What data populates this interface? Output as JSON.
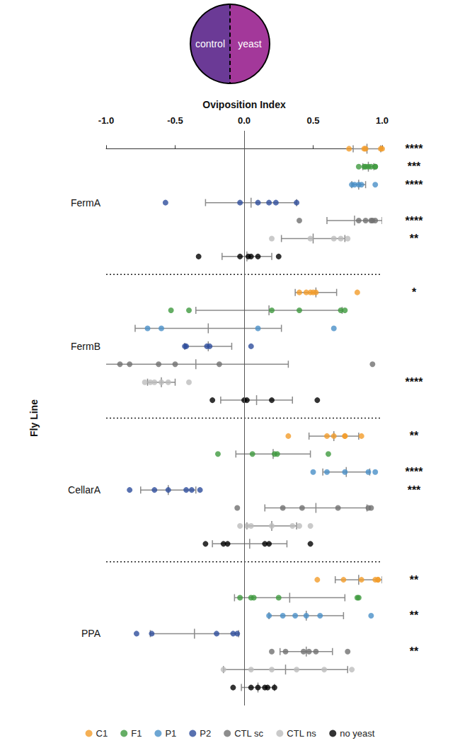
{
  "chart_data": {
    "type": "scatter",
    "x_label": "Oviposition Index",
    "y_label": "Fly Line",
    "annotations": [
      "control",
      "yeast"
    ],
    "xlim": [
      -1,
      1
    ],
    "xticks": [
      {
        "value": -1,
        "label": "-1.0"
      },
      {
        "value": -0.5,
        "label": "-0.5"
      },
      {
        "value": 0,
        "label": "0.0"
      },
      {
        "value": 0.5,
        "label": "0.5"
      },
      {
        "value": 1,
        "label": "1.0"
      }
    ],
    "categories": [
      "FermA",
      "FermB",
      "CellarA",
      "PPA"
    ],
    "series": [
      {
        "name": "C1",
        "color": "#f39c2b",
        "values": [
          [
            0.76,
            0.87,
            0.88,
            0.99,
            1.0
          ],
          [
            0.4,
            0.45,
            0.48,
            0.5,
            0.52,
            0.82
          ],
          [
            0.32,
            0.6,
            0.65,
            0.73,
            0.73,
            0.85
          ],
          [
            0.53,
            0.72,
            0.85,
            0.95,
            0.97,
            0.97
          ]
        ],
        "means": [
          0.89,
          0.52,
          0.65,
          0.83
        ],
        "errors": [
          0.1,
          0.15,
          0.18,
          0.17
        ],
        "significance": [
          "****",
          "*",
          "**",
          "**"
        ]
      },
      {
        "name": "F1",
        "color": "#3f9a3f",
        "values": [
          [
            0.83,
            0.87,
            0.88,
            0.9,
            0.92,
            0.95,
            0.95
          ],
          [
            -0.53,
            -0.4,
            0.2,
            0.4,
            0.7,
            0.73
          ],
          [
            -0.19,
            0.06,
            0.22,
            0.24,
            0.61
          ],
          [
            -0.03,
            0.05,
            0.07,
            0.25,
            0.82,
            0.83
          ]
        ],
        "means": [
          0.9,
          0.18,
          0.21,
          0.33
        ],
        "errors": [
          0.04,
          0.53,
          0.27,
          0.4
        ],
        "significance": [
          "***",
          null,
          null,
          null
        ]
      },
      {
        "name": "P1",
        "color": "#4a90c8",
        "values": [
          [
            0.78,
            0.8,
            0.83,
            0.85,
            0.95
          ],
          [
            -0.7,
            -0.6,
            0.1,
            0.65
          ],
          [
            0.5,
            0.6,
            0.73,
            0.9,
            0.95
          ],
          [
            0.18,
            0.28,
            0.37,
            0.45,
            0.55,
            0.92
          ]
        ],
        "means": [
          0.83,
          -0.26,
          0.74,
          0.45
        ],
        "errors": [
          0.05,
          0.53,
          0.17,
          0.27
        ],
        "significance": [
          "****",
          null,
          "****",
          "**"
        ]
      },
      {
        "name": "P2",
        "color": "#2e4e9c",
        "values": [
          [
            -0.57,
            -0.03,
            0.1,
            0.18,
            0.23,
            0.38
          ],
          [
            -0.43,
            -0.42,
            -0.27,
            -0.25,
            0.05
          ],
          [
            -0.83,
            -0.65,
            -0.55,
            -0.42,
            -0.38,
            -0.32
          ],
          [
            -0.78,
            -0.67,
            -0.2,
            -0.08,
            -0.05
          ]
        ],
        "means": [
          0.05,
          -0.26,
          -0.55,
          -0.36
        ],
        "errors": [
          0.33,
          0.17,
          0.2,
          0.32
        ],
        "significance": [
          null,
          null,
          "***",
          null
        ]
      },
      {
        "name": "CTL sc",
        "color": "#707070",
        "values": [
          [
            0.4,
            0.83,
            0.88,
            0.92,
            0.93,
            0.95
          ],
          [
            -0.9,
            -0.83,
            -0.62,
            -0.5,
            -0.18,
            0.93
          ],
          [
            -0.05,
            0.28,
            0.42,
            0.68,
            0.9,
            0.92
          ],
          [
            0.2,
            0.3,
            0.43,
            0.47,
            0.52,
            0.75
          ]
        ],
        "means": [
          0.8,
          -0.35,
          0.52,
          0.45
        ],
        "errors": [
          0.2,
          0.67,
          0.37,
          0.19
        ],
        "significance": [
          "****",
          null,
          null,
          "**"
        ]
      },
      {
        "name": "CTL ns",
        "color": "#bdbdbd",
        "values": [
          [
            0.2,
            0.48,
            0.65,
            0.7,
            0.75
          ],
          [
            -0.72,
            -0.68,
            -0.65,
            -0.6,
            -0.55,
            -0.4
          ],
          [
            -0.03,
            0.02,
            0.05,
            0.2,
            0.35,
            0.4,
            0.48
          ],
          [
            -0.15,
            0.05,
            0.2,
            0.38,
            0.58,
            0.78
          ]
        ],
        "means": [
          0.5,
          -0.6,
          0.2,
          0.3
        ],
        "errors": [
          0.23,
          0.1,
          0.18,
          0.45
        ],
        "significance": [
          "**",
          "****",
          null,
          null
        ]
      },
      {
        "name": "no yeast",
        "color": "#000000",
        "values": [
          [
            -0.33,
            -0.03,
            0.03,
            0.05,
            0.1,
            0.25
          ],
          [
            -0.23,
            0.0,
            0.02,
            0.2,
            0.53
          ],
          [
            -0.28,
            -0.15,
            -0.12,
            0.15,
            0.18,
            0.48
          ],
          [
            -0.08,
            0.05,
            0.1,
            0.15,
            0.17,
            0.22
          ]
        ],
        "means": [
          0.02,
          0.09,
          0.04,
          0.1
        ],
        "errors": [
          0.18,
          0.26,
          0.27,
          0.12
        ],
        "significance": [
          null,
          null,
          null,
          null
        ]
      }
    ]
  }
}
